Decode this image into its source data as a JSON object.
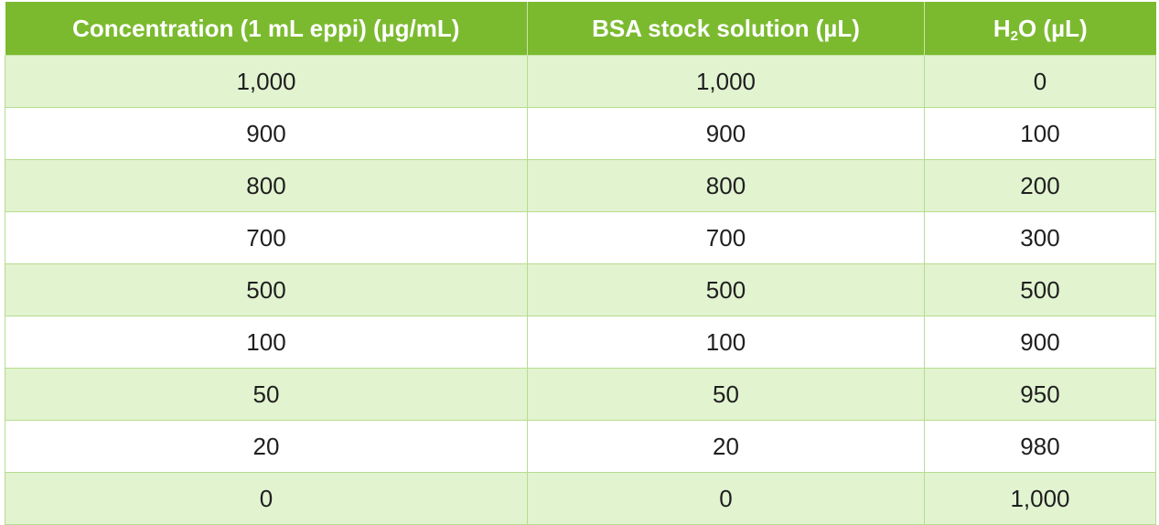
{
  "table": {
    "headers": {
      "concentration": "Concentration (1 mL eppi) (µg/mL)",
      "bsa": "BSA stock solution (µL)",
      "h2o_h": "H",
      "h2o_sub": "2",
      "h2o_rest": "O (µL)"
    },
    "rows": [
      {
        "concentration": "1,000",
        "bsa": "1,000",
        "h2o": "0"
      },
      {
        "concentration": "900",
        "bsa": "900",
        "h2o": "100"
      },
      {
        "concentration": "800",
        "bsa": "800",
        "h2o": "200"
      },
      {
        "concentration": "700",
        "bsa": "700",
        "h2o": "300"
      },
      {
        "concentration": "500",
        "bsa": "500",
        "h2o": "500"
      },
      {
        "concentration": "100",
        "bsa": "100",
        "h2o": "900"
      },
      {
        "concentration": "50",
        "bsa": "50",
        "h2o": "950"
      },
      {
        "concentration": "20",
        "bsa": "20",
        "h2o": "980"
      },
      {
        "concentration": "0",
        "bsa": "0",
        "h2o": "1,000"
      }
    ]
  },
  "colors": {
    "header_bg": "#7bba2f",
    "row_shade": "#e2f3d0",
    "row_plain": "#ffffff"
  }
}
